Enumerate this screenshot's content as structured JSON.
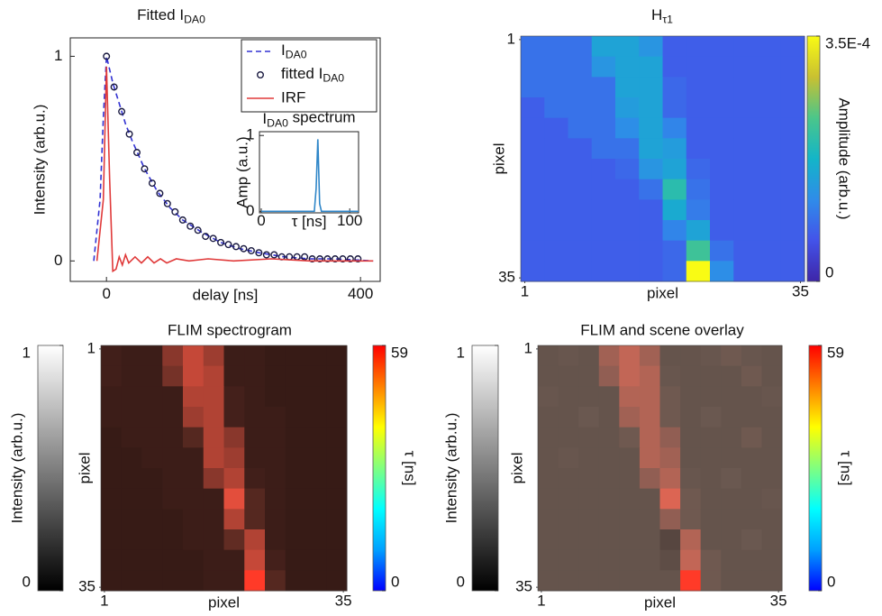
{
  "chart_data": [
    {
      "type": "line",
      "title": [
        "Fitted I",
        "DA0"
      ],
      "xlabel": "delay [ns]",
      "ylabel": "Intensity (arb.u.)",
      "xlim": [
        -57,
        431
      ],
      "ylim": [
        -0.1,
        1.09
      ],
      "xticks": [
        0,
        400
      ],
      "yticks": [
        0,
        1
      ],
      "legend": "upper right",
      "series": [
        {
          "name": [
            "I",
            "DA0"
          ],
          "color": "#3232d2",
          "linestyle": "dashed",
          "x": [
            -20,
            -10,
            -5,
            0,
            10,
            20,
            30,
            40,
            60,
            80,
            100,
            120,
            150,
            180,
            210,
            240,
            280,
            320,
            360,
            420
          ],
          "values": [
            0,
            0.3,
            0.7,
            1,
            0.87,
            0.77,
            0.67,
            0.59,
            0.45,
            0.34,
            0.26,
            0.2,
            0.14,
            0.09,
            0.06,
            0.04,
            0.02,
            0.01,
            0.01,
            0
          ]
        },
        {
          "name": [
            "fitted I",
            "DA0"
          ],
          "color": "#1a1a40",
          "marker": "circle",
          "x": [
            0,
            12,
            24,
            36,
            48,
            60,
            72,
            84,
            96,
            108,
            120,
            132,
            144,
            156,
            168,
            180,
            192,
            204,
            216,
            228,
            240,
            252,
            264,
            276,
            288,
            300,
            312,
            324,
            336,
            348,
            360,
            372,
            384,
            396
          ],
          "values": [
            1.0,
            0.85,
            0.73,
            0.62,
            0.53,
            0.45,
            0.38,
            0.33,
            0.28,
            0.24,
            0.2,
            0.17,
            0.15,
            0.12,
            0.11,
            0.09,
            0.08,
            0.07,
            0.06,
            0.05,
            0.04,
            0.03,
            0.03,
            0.02,
            0.02,
            0.02,
            0.02,
            0.01,
            0.01,
            0.01,
            0.01,
            0.01,
            0.01,
            0.01
          ]
        },
        {
          "name": "IRF",
          "color": "#e03a3a",
          "linestyle": "solid",
          "x": [
            -15,
            -5,
            0,
            5,
            10,
            15,
            20,
            25,
            30,
            35,
            45,
            55,
            65,
            75,
            85,
            95,
            110,
            130,
            160,
            200,
            260,
            320,
            420
          ],
          "values": [
            0,
            0.3,
            0.95,
            0.4,
            -0.05,
            -0.04,
            0.02,
            -0.02,
            0.03,
            -0.01,
            0.02,
            -0.01,
            0.02,
            -0.01,
            0.01,
            -0.01,
            0.01,
            0,
            0.01,
            0,
            0.01,
            0,
            0
          ]
        }
      ]
    },
    {
      "type": "line",
      "title": [
        "I",
        "DA0",
        " spectrum"
      ],
      "xlabel": "τ [ns]",
      "ylabel": "Amp (a.u.)",
      "xlim": [
        -2,
        110
      ],
      "ylim": [
        -0.02,
        1.05
      ],
      "xticks": [
        0,
        100
      ],
      "yticks": [
        0,
        1
      ],
      "series": [
        {
          "color": "#2f86c8",
          "linestyle": "solid",
          "x": [
            0,
            60,
            62,
            64,
            66,
            68,
            110
          ],
          "values": [
            0,
            0,
            0.3,
            0.95,
            0.1,
            0,
            0
          ]
        }
      ]
    },
    {
      "type": "heatmap",
      "title": [
        "H",
        "τ1"
      ],
      "xlabel": "pixel",
      "ylabel": "pixel",
      "xlim": [
        0.5,
        35.5
      ],
      "ylim": [
        0.5,
        35.5
      ],
      "yreverse": true,
      "xticks": [
        1,
        35
      ],
      "yticks": [
        1,
        35
      ],
      "colorbars": [
        {
          "label": "Amplitude (arb.u.)",
          "lim": [
            0,
            0.00035
          ],
          "ticks": [
            {
              "value": 0.00035,
              "label": "3.5E-4"
            },
            0
          ],
          "colors": [
            "#3e26a8",
            "#4353e9",
            "#2f8ce9",
            "#13b5c8",
            "#4bc68a",
            "#c9c031",
            "#f9fb14"
          ]
        }
      ],
      "values": [
        [
          9e-05,
          9e-05,
          9e-05,
          0.00015,
          0.00015,
          0.00013,
          7e-05,
          7e-05,
          7e-05,
          7e-05,
          7e-05,
          7e-05
        ],
        [
          9e-05,
          9e-05,
          9e-05,
          0.00013,
          0.00015,
          0.00015,
          7e-05,
          7e-05,
          7e-05,
          7e-05,
          7e-05,
          7e-05
        ],
        [
          9e-05,
          9e-05,
          9e-05,
          9e-05,
          0.00015,
          0.00015,
          8e-05,
          7e-05,
          7e-05,
          7e-05,
          7e-05,
          7e-05
        ],
        [
          7e-05,
          9e-05,
          9e-05,
          9e-05,
          0.00014,
          0.00015,
          8e-05,
          7e-05,
          7e-05,
          7e-05,
          7e-05,
          7e-05
        ],
        [
          7e-05,
          7e-05,
          9e-05,
          9e-05,
          0.00012,
          0.00015,
          0.00011,
          7e-05,
          7e-05,
          7e-05,
          7e-05,
          7e-05
        ],
        [
          7e-05,
          7e-05,
          7e-05,
          9e-05,
          9e-05,
          0.00015,
          0.00014,
          7e-05,
          7e-05,
          7e-05,
          7e-05,
          7e-05
        ],
        [
          7e-05,
          7e-05,
          7e-05,
          7e-05,
          8e-05,
          0.00013,
          0.00015,
          8e-05,
          7e-05,
          7e-05,
          7e-05,
          7e-05
        ],
        [
          7e-05,
          7e-05,
          7e-05,
          7e-05,
          7e-05,
          9e-05,
          0.0002,
          9e-05,
          7e-05,
          7e-05,
          7e-05,
          7e-05
        ],
        [
          7e-05,
          7e-05,
          7e-05,
          7e-05,
          7e-05,
          7e-05,
          0.00016,
          0.0001,
          7e-05,
          7e-05,
          7e-05,
          7e-05
        ],
        [
          7e-05,
          7e-05,
          7e-05,
          7e-05,
          7e-05,
          7e-05,
          0.00011,
          0.00015,
          7e-05,
          7e-05,
          7e-05,
          7e-05
        ],
        [
          7e-05,
          7e-05,
          7e-05,
          7e-05,
          7e-05,
          7e-05,
          8e-05,
          0.00022,
          9e-05,
          7e-05,
          7e-05,
          7e-05
        ],
        [
          7e-05,
          7e-05,
          7e-05,
          7e-05,
          7e-05,
          7e-05,
          8e-05,
          0.00035,
          0.00012,
          7e-05,
          7e-05,
          7e-05
        ]
      ]
    },
    {
      "type": "heatmap",
      "title": "FLIM spectrogram",
      "xlabel": "pixel",
      "ylabel": "pixel",
      "xlim": [
        0.5,
        35.5
      ],
      "ylim": [
        0.5,
        35.5
      ],
      "yreverse": true,
      "xticks": [
        1,
        35
      ],
      "yticks": [
        1,
        35
      ],
      "image_colors": [
        "#241210",
        "#5a2a22",
        "#e0503e",
        "#ff3a28"
      ],
      "colorbars": [
        {
          "label": "Intensity (arb.u.)",
          "lim": [
            0,
            1
          ],
          "ticks": [
            0,
            1
          ],
          "colors": [
            "#000000",
            "#ffffff"
          ]
        },
        {
          "label": "τ [ns]",
          "lim": [
            0,
            59
          ],
          "ticks": [
            0,
            59
          ],
          "colors": [
            "#0000ff",
            "#00a0ff",
            "#00ffff",
            "#80ff80",
            "#ffff00",
            "#ff8000",
            "#ff0000"
          ]
        }
      ],
      "values": [
        [
          0.18,
          0.15,
          0.15,
          0.45,
          0.6,
          0.5,
          0.15,
          0.15,
          0.12,
          0.12,
          0.12,
          0.12
        ],
        [
          0.18,
          0.15,
          0.15,
          0.4,
          0.6,
          0.55,
          0.15,
          0.15,
          0.12,
          0.12,
          0.12,
          0.12
        ],
        [
          0.15,
          0.15,
          0.15,
          0.15,
          0.55,
          0.55,
          0.2,
          0.15,
          0.12,
          0.12,
          0.12,
          0.12
        ],
        [
          0.15,
          0.15,
          0.15,
          0.15,
          0.5,
          0.55,
          0.2,
          0.15,
          0.15,
          0.12,
          0.12,
          0.12
        ],
        [
          0.12,
          0.15,
          0.15,
          0.15,
          0.3,
          0.55,
          0.45,
          0.15,
          0.15,
          0.12,
          0.12,
          0.12
        ],
        [
          0.12,
          0.12,
          0.15,
          0.15,
          0.15,
          0.55,
          0.5,
          0.15,
          0.15,
          0.12,
          0.12,
          0.12
        ],
        [
          0.12,
          0.12,
          0.12,
          0.15,
          0.15,
          0.45,
          0.55,
          0.18,
          0.15,
          0.12,
          0.12,
          0.12
        ],
        [
          0.12,
          0.12,
          0.12,
          0.15,
          0.15,
          0.15,
          0.7,
          0.3,
          0.15,
          0.12,
          0.12,
          0.12
        ],
        [
          0.12,
          0.12,
          0.12,
          0.12,
          0.15,
          0.15,
          0.55,
          0.3,
          0.15,
          0.12,
          0.12,
          0.12
        ],
        [
          0.12,
          0.12,
          0.12,
          0.12,
          0.15,
          0.15,
          0.35,
          0.55,
          0.15,
          0.12,
          0.12,
          0.12
        ],
        [
          0.12,
          0.12,
          0.12,
          0.12,
          0.12,
          0.15,
          0.15,
          0.6,
          0.2,
          0.12,
          0.12,
          0.12
        ],
        [
          0.12,
          0.12,
          0.12,
          0.12,
          0.12,
          0.15,
          0.15,
          1.0,
          0.3,
          0.12,
          0.12,
          0.12
        ]
      ]
    },
    {
      "type": "heatmap",
      "title": "FLIM and scene overlay",
      "xlabel": "pixel",
      "ylabel": "pixel",
      "xlim": [
        0.5,
        35.5
      ],
      "ylim": [
        0.5,
        35.5
      ],
      "yreverse": true,
      "xticks": [
        1,
        35
      ],
      "yticks": [
        1,
        35
      ],
      "image_colors": [
        "#3a2c28",
        "#6a5850",
        "#d86a58",
        "#ff3a28"
      ],
      "colorbars": [
        {
          "label": "Intensity (arb.u.)",
          "lim": [
            0,
            1
          ],
          "ticks": [
            0,
            1
          ],
          "colors": [
            "#000000",
            "#ffffff"
          ]
        },
        {
          "label": "τ [ns]",
          "lim": [
            0,
            59
          ],
          "ticks": [
            0,
            59
          ],
          "colors": [
            "#0000ff",
            "#00a0ff",
            "#00ffff",
            "#80ff80",
            "#ffff00",
            "#ff8000",
            "#ff0000"
          ]
        }
      ],
      "values": [
        [
          0.3,
          0.32,
          0.3,
          0.5,
          0.6,
          0.5,
          0.3,
          0.3,
          0.32,
          0.35,
          0.32,
          0.3
        ],
        [
          0.3,
          0.3,
          0.3,
          0.45,
          0.6,
          0.55,
          0.32,
          0.3,
          0.3,
          0.3,
          0.35,
          0.3
        ],
        [
          0.32,
          0.3,
          0.3,
          0.3,
          0.55,
          0.55,
          0.35,
          0.3,
          0.3,
          0.3,
          0.3,
          0.32
        ],
        [
          0.3,
          0.3,
          0.33,
          0.3,
          0.5,
          0.55,
          0.35,
          0.3,
          0.33,
          0.3,
          0.3,
          0.3
        ],
        [
          0.3,
          0.3,
          0.3,
          0.3,
          0.35,
          0.55,
          0.45,
          0.3,
          0.3,
          0.3,
          0.35,
          0.3
        ],
        [
          0.3,
          0.32,
          0.3,
          0.3,
          0.3,
          0.55,
          0.5,
          0.3,
          0.3,
          0.3,
          0.3,
          0.3
        ],
        [
          0.3,
          0.3,
          0.3,
          0.3,
          0.3,
          0.45,
          0.55,
          0.32,
          0.3,
          0.33,
          0.3,
          0.3
        ],
        [
          0.3,
          0.3,
          0.3,
          0.3,
          0.3,
          0.3,
          0.7,
          0.35,
          0.3,
          0.3,
          0.3,
          0.32
        ],
        [
          0.3,
          0.3,
          0.3,
          0.3,
          0.3,
          0.3,
          0.45,
          0.35,
          0.3,
          0.3,
          0.3,
          0.3
        ],
        [
          0.3,
          0.3,
          0.3,
          0.3,
          0.3,
          0.3,
          0.2,
          0.55,
          0.3,
          0.3,
          0.33,
          0.3
        ],
        [
          0.3,
          0.3,
          0.3,
          0.3,
          0.3,
          0.3,
          0.25,
          0.6,
          0.35,
          0.3,
          0.3,
          0.3
        ],
        [
          0.3,
          0.3,
          0.3,
          0.3,
          0.3,
          0.3,
          0.3,
          1.0,
          0.35,
          0.3,
          0.3,
          0.3
        ]
      ]
    }
  ]
}
